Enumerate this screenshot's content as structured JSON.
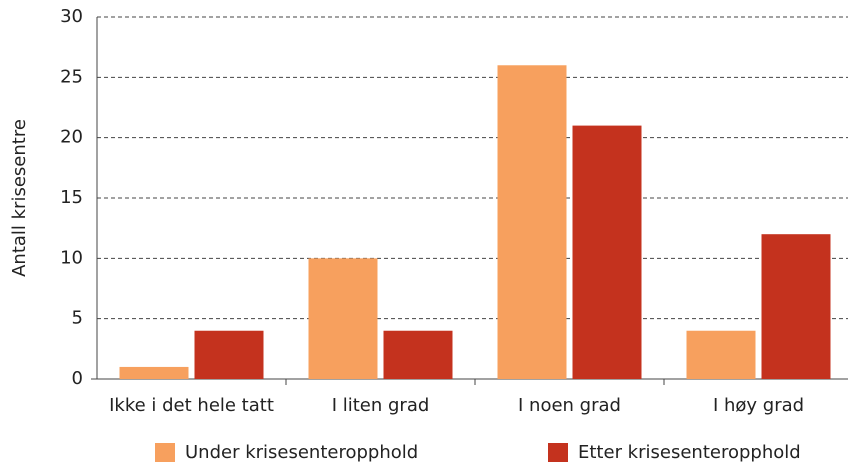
{
  "chart_data": {
    "type": "bar",
    "y_label": "Antall krisesentre",
    "categories": [
      "Ikke i det hele tatt",
      "I liten grad",
      "I noen grad",
      "I høy grad"
    ],
    "series": [
      {
        "name": "Under krisesenteropphold",
        "color": "#f7a05e",
        "values": [
          1,
          10,
          26,
          4
        ]
      },
      {
        "name": "Etter krisesenteropphold",
        "color": "#c4321e",
        "values": [
          4,
          4,
          21,
          12
        ]
      }
    ],
    "ylim": [
      0,
      30
    ],
    "yticks": [
      0,
      5,
      10,
      15,
      20,
      25,
      30
    ],
    "grid": true,
    "legend": "bottom"
  }
}
